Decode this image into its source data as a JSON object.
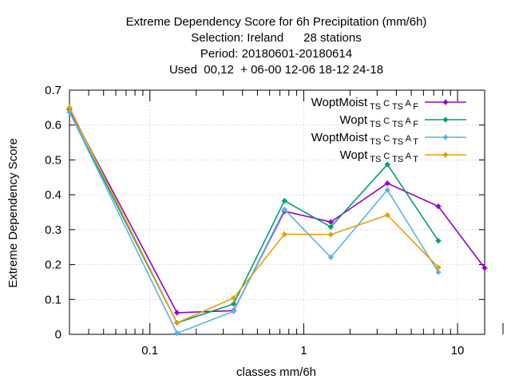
{
  "chart_data": {
    "type": "line",
    "title_lines": [
      "Extreme Dependency Score  for 6h Precipitation (mm/6h)",
      "Selection: Ireland      28 stations",
      "Period: 20180601-20180614",
      "Used  00,12  + 06-00 12-06 18-12 24-18"
    ],
    "xlabel": "classes mm/6h",
    "ylabel": "Extreme Dependency Score",
    "xscale": "log",
    "xlim": [
      0.03,
      15
    ],
    "ylim": [
      0,
      0.7
    ],
    "xticks": [
      {
        "value": 0.1,
        "label": "0.1"
      },
      {
        "value": 1,
        "label": "1"
      },
      {
        "value": 10,
        "label": "10"
      }
    ],
    "yticks": [
      {
        "value": 0,
        "label": "0"
      },
      {
        "value": 0.1,
        "label": "0.1"
      },
      {
        "value": 0.2,
        "label": "0.2"
      },
      {
        "value": 0.3,
        "label": "0.3"
      },
      {
        "value": 0.4,
        "label": "0.4"
      },
      {
        "value": 0.5,
        "label": "0.5"
      },
      {
        "value": 0.6,
        "label": "0.6"
      },
      {
        "value": 0.7,
        "label": "0.7"
      }
    ],
    "grid": true,
    "legend_position": "top-right",
    "series": [
      {
        "name": "WoptMoist",
        "sub1": "TS",
        "mid": "C",
        "sub2": "TS",
        "tail": "A",
        "sub3": "F",
        "color": "#9400d3",
        "points": [
          [
            0.03,
            0.645
          ],
          [
            0.15,
            0.062
          ],
          [
            0.35,
            0.068
          ],
          [
            0.75,
            0.353
          ],
          [
            1.5,
            0.322
          ],
          [
            3.5,
            0.433
          ],
          [
            7.5,
            0.367
          ],
          [
            15,
            0.19
          ]
        ]
      },
      {
        "name": "Wopt",
        "sub1": "TS",
        "mid": "C",
        "sub2": "TS",
        "tail": "A",
        "sub3": "F",
        "color": "#009e73",
        "points": [
          [
            0.03,
            0.637
          ],
          [
            0.15,
            0.033
          ],
          [
            0.35,
            0.087
          ],
          [
            0.75,
            0.383
          ],
          [
            1.5,
            0.308
          ],
          [
            3.5,
            0.487
          ],
          [
            7.5,
            0.268
          ]
        ]
      },
      {
        "name": "WoptMoist",
        "sub1": "TS",
        "mid": "C",
        "sub2": "TS",
        "tail": "A",
        "sub3": "T",
        "color": "#56b4e9",
        "points": [
          [
            0.03,
            0.638
          ],
          [
            0.15,
            0.003
          ],
          [
            0.35,
            0.066
          ],
          [
            0.75,
            0.358
          ],
          [
            1.5,
            0.221
          ],
          [
            3.5,
            0.414
          ],
          [
            7.5,
            0.178
          ]
        ]
      },
      {
        "name": "Wopt",
        "sub1": "TS",
        "mid": "C",
        "sub2": "TS",
        "tail": "A",
        "sub3": "T",
        "color": "#e69f00",
        "points": [
          [
            0.03,
            0.65
          ],
          [
            0.15,
            0.033
          ],
          [
            0.35,
            0.104
          ],
          [
            0.75,
            0.287
          ],
          [
            1.5,
            0.286
          ],
          [
            3.5,
            0.342
          ],
          [
            7.5,
            0.192
          ]
        ]
      }
    ]
  }
}
